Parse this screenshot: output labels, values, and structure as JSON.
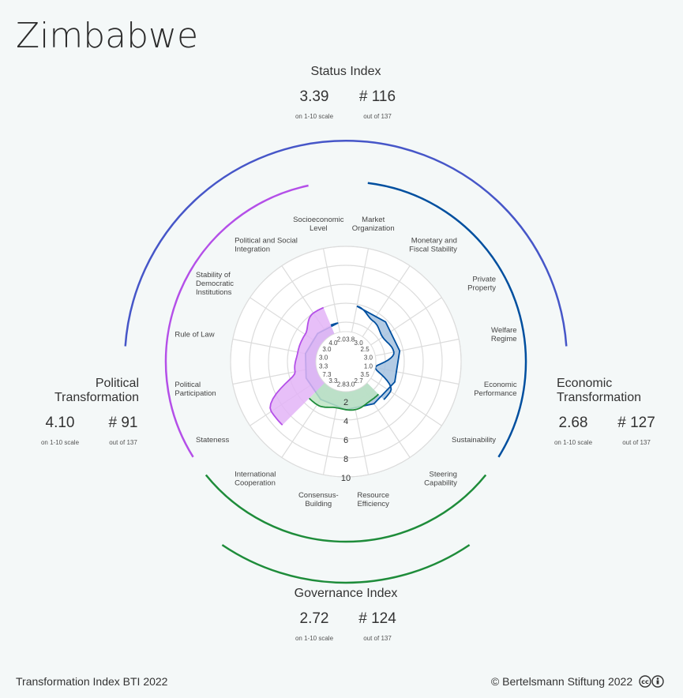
{
  "country": "Zimbabwe",
  "status_index": {
    "title": "Status Index",
    "score": "3.39",
    "score_note": "on 1-10 scale",
    "rank": "# 116",
    "rank_note": "out of 137"
  },
  "political": {
    "title_line1": "Political",
    "title_line2": "Transformation",
    "score": "4.10",
    "score_note": "on 1-10 scale",
    "rank": "# 91",
    "rank_note": "out of 137",
    "color": "#b44fe8"
  },
  "economic": {
    "title_line1": "Economic",
    "title_line2": "Transformation",
    "score": "2.68",
    "score_note": "on 1-10 scale",
    "rank": "# 127",
    "rank_note": "out of 137",
    "color": "#004f9f"
  },
  "governance": {
    "title": "Governance Index",
    "score": "2.72",
    "score_note": "on 1-10 scale",
    "rank": "# 124",
    "rank_note": "out of 137",
    "color": "#1e8c3a"
  },
  "status_color": "#4656c8",
  "footer": {
    "left": "Transformation Index BTI 2022",
    "right": "© Bertelsmann Stiftung 2022"
  },
  "chart_data": {
    "type": "radar",
    "scale": [
      1,
      10
    ],
    "ring_labels": [
      "2",
      "4",
      "6",
      "8",
      "10"
    ],
    "axes": [
      {
        "label": [
          "Market",
          "Organization"
        ],
        "value": 3.8,
        "group": "economic"
      },
      {
        "label": [
          "Monetary and",
          "Fiscal Stability"
        ],
        "value": 3.0,
        "group": "economic"
      },
      {
        "label": [
          "Private",
          "Property"
        ],
        "value": 2.5,
        "group": "economic"
      },
      {
        "label": [
          "Welfare",
          "Regime"
        ],
        "value": 3.0,
        "group": "economic"
      },
      {
        "label": [
          "Economic",
          "Performance"
        ],
        "value": 1.0,
        "group": "economic"
      },
      {
        "label": [
          "Sustainability"
        ],
        "value": 3.5,
        "group": "economic"
      },
      {
        "label": [
          "Steering",
          "Capability"
        ],
        "value": 2.7,
        "group": "governance"
      },
      {
        "label": [
          "Resource",
          "Efficiency"
        ],
        "value": 3.0,
        "group": "governance"
      },
      {
        "label": [
          "Consensus-",
          "Building"
        ],
        "value": 2.8,
        "group": "governance"
      },
      {
        "label": [
          "International",
          "Cooperation"
        ],
        "value": 3.3,
        "group": "governance"
      },
      {
        "label": [
          "Stateness"
        ],
        "value": 7.3,
        "group": "political"
      },
      {
        "label": [
          "Political",
          "Participation"
        ],
        "value": 3.3,
        "group": "political"
      },
      {
        "label": [
          "Rule of Law"
        ],
        "value": 3.0,
        "group": "political"
      },
      {
        "label": [
          "Stability of",
          "Democratic",
          "Institutions"
        ],
        "value": 3.0,
        "group": "political"
      },
      {
        "label": [
          "Political and Social",
          "Integration"
        ],
        "value": 4.0,
        "group": "political"
      },
      {
        "label": [
          "Socioeconomic",
          "Level"
        ],
        "value": 2.0,
        "group": "economic"
      }
    ],
    "value_labels": [
      "3.8",
      "3.0",
      "2.5",
      "3.0",
      "1.0",
      "3.5",
      "2.7",
      "3.0",
      "2.8",
      "3.3",
      "7.3",
      "3.3",
      "3.0",
      "3.0",
      "4.0",
      "2.0"
    ]
  }
}
